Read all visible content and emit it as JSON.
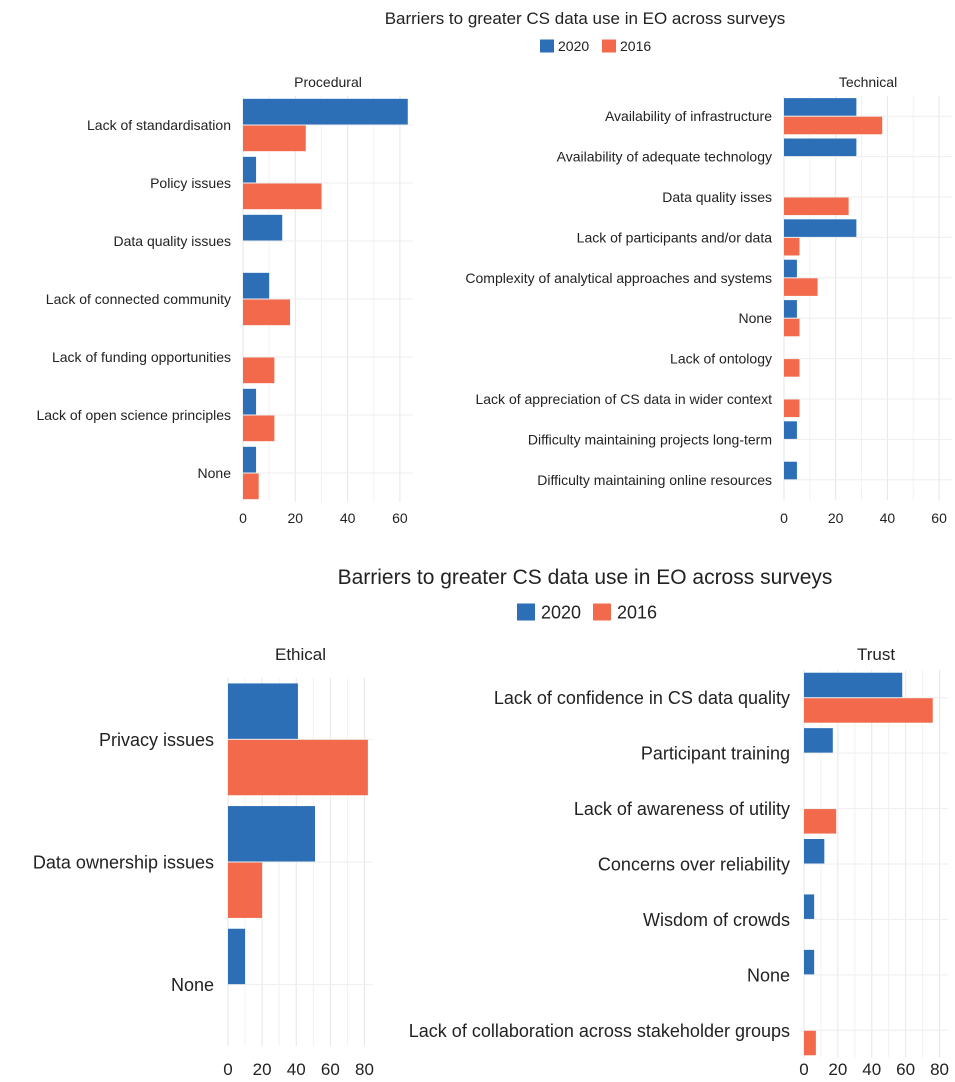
{
  "figures": [
    {
      "title": "Barriers to greater CS data use in EO across surveys",
      "legend": [
        {
          "label": "2020",
          "color": "#2c6fb7"
        },
        {
          "label": "2016",
          "color": "#f26a4b"
        }
      ]
    },
    {
      "title": "Barriers to greater CS data use in EO across surveys",
      "legend": [
        {
          "label": "2020",
          "color": "#2c6fb7"
        },
        {
          "label": "2016",
          "color": "#f26a4b"
        }
      ]
    }
  ],
  "chart_data": [
    {
      "type": "bar",
      "orientation": "horizontal",
      "title": "Procedural",
      "categories": [
        "Lack of standardisation",
        "Policy issues",
        "Data quality issues",
        "Lack of connected community",
        "Lack of funding opportunities",
        "Lack of open science principles",
        "None"
      ],
      "series": [
        {
          "name": "2020",
          "color": "#2c6fb7",
          "values": [
            63,
            5,
            15,
            10,
            null,
            5,
            5
          ]
        },
        {
          "name": "2016",
          "color": "#f26a4b",
          "values": [
            24,
            30,
            null,
            18,
            12,
            12,
            6
          ]
        }
      ],
      "xlim": [
        0,
        65
      ],
      "xticks": [
        0,
        20,
        40,
        60
      ],
      "grid": true
    },
    {
      "type": "bar",
      "orientation": "horizontal",
      "title": "Technical",
      "categories": [
        "Availability of infrastructure",
        "Availability of adequate technology",
        "Data quality isses",
        "Lack of participants and/or data",
        "Complexity of analytical approaches and systems",
        "None",
        "Lack of ontology",
        "Lack of appreciation of CS data in wider context",
        "Difficulty maintaining projects long-term",
        "Difficulty maintaining online resources"
      ],
      "series": [
        {
          "name": "2020",
          "color": "#2c6fb7",
          "values": [
            28,
            28,
            null,
            28,
            5,
            5,
            null,
            null,
            5,
            5
          ]
        },
        {
          "name": "2016",
          "color": "#f26a4b",
          "values": [
            38,
            null,
            25,
            6,
            13,
            6,
            6,
            6,
            null,
            null
          ]
        }
      ],
      "xlim": [
        0,
        65
      ],
      "xticks": [
        0,
        20,
        40,
        60
      ],
      "grid": true
    },
    {
      "type": "bar",
      "orientation": "horizontal",
      "title": "Ethical",
      "categories": [
        "Privacy issues",
        "Data ownership issues",
        "None"
      ],
      "series": [
        {
          "name": "2020",
          "color": "#2c6fb7",
          "values": [
            41,
            51,
            10
          ]
        },
        {
          "name": "2016",
          "color": "#f26a4b",
          "values": [
            82,
            20,
            null
          ]
        }
      ],
      "xlim": [
        0,
        85
      ],
      "xticks": [
        0,
        20,
        40,
        60,
        80
      ],
      "grid": true
    },
    {
      "type": "bar",
      "orientation": "horizontal",
      "title": "Trust",
      "categories": [
        "Lack of confidence in CS data quality",
        "Participant training",
        "Lack of awareness of utility",
        "Concerns over reliability",
        "Wisdom of crowds",
        "None",
        "Lack of collaboration across stakeholder groups"
      ],
      "series": [
        {
          "name": "2020",
          "color": "#2c6fb7",
          "values": [
            58,
            17,
            null,
            12,
            6,
            6,
            null
          ]
        },
        {
          "name": "2016",
          "color": "#f26a4b",
          "values": [
            76,
            null,
            19,
            null,
            null,
            null,
            7
          ]
        }
      ],
      "xlim": [
        0,
        85
      ],
      "xticks": [
        0,
        20,
        40,
        60,
        80
      ],
      "grid": true
    }
  ]
}
